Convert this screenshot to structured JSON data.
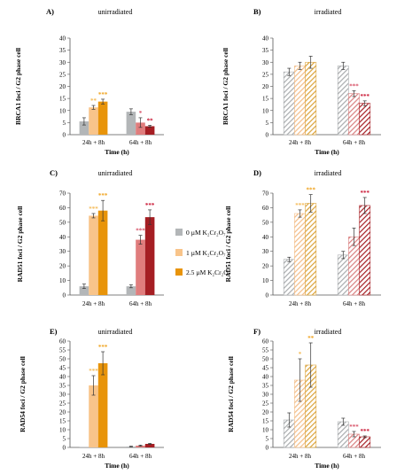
{
  "legend": {
    "entries": [
      "0 µM K₂Cr₂O₇",
      "1 µM K₂Cr₂O₇",
      "2.5 µM K₂Cr₂O₇"
    ],
    "colors": [
      "#b3b6b8",
      "#f8c48a",
      "#e8940a"
    ]
  },
  "colors": {
    "unirradiated": [
      "#b3b6b8",
      "#f8c48a",
      "#e8940a"
    ],
    "unirradiated_64h": [
      "#b3b6b8",
      "#e07d7d",
      "#a51e23"
    ],
    "irradiated_24h_stroke": [
      "#a9acae",
      "#f3bd88",
      "#dba33a"
    ],
    "irradiated_64h_stroke": [
      "#a9acae",
      "#d98080",
      "#a51e23"
    ],
    "orange_star": "#f0a31e",
    "red_star": "#c8102e",
    "axis": "#555555"
  },
  "chart_data": [
    {
      "panel": "A)",
      "title": "unirradiated",
      "type": "bar",
      "pattern": "solid",
      "ylabel": "BRCA1 foci / G2 phase cell",
      "xlabel": "Time (h)",
      "ylim": [
        0,
        40
      ],
      "yticks": [
        0,
        5,
        10,
        15,
        20,
        25,
        30,
        35,
        40
      ],
      "categories": [
        "24h + 8h",
        "64h + 8h"
      ],
      "series": [
        {
          "values": [
            5.5,
            9.5
          ],
          "errors": [
            1.5,
            1.2
          ]
        },
        {
          "values": [
            11.3,
            5.0
          ],
          "errors": [
            0.8,
            2.0
          ]
        },
        {
          "values": [
            13.7,
            3.5
          ],
          "errors": [
            1.0,
            0.4
          ]
        }
      ],
      "stars": [
        [
          "",
          ""
        ],
        [
          "**",
          "*"
        ],
        [
          "***",
          "**"
        ]
      ]
    },
    {
      "panel": "B)",
      "title": "irradiated",
      "type": "bar",
      "pattern": "hatched",
      "ylabel": "BRCA1 foci / G2 phase cell",
      "xlabel": "Time (h)",
      "ylim": [
        0,
        40
      ],
      "yticks": [
        0,
        5,
        10,
        15,
        20,
        25,
        30,
        35,
        40
      ],
      "categories": [
        "24h + 8h",
        "64h + 8h"
      ],
      "series": [
        {
          "values": [
            26.0,
            28.5
          ],
          "errors": [
            1.5,
            1.5
          ]
        },
        {
          "values": [
            28.5,
            17.0
          ],
          "errors": [
            1.5,
            1.2
          ]
        },
        {
          "values": [
            30.0,
            13.0
          ],
          "errors": [
            2.5,
            1.0
          ]
        }
      ],
      "stars": [
        [
          "",
          ""
        ],
        [
          "",
          "***"
        ],
        [
          "",
          "***"
        ]
      ]
    },
    {
      "panel": "C)",
      "title": "unirradiated",
      "type": "bar",
      "pattern": "solid",
      "ylabel": "RAD51 foci / G2 phase cell",
      "xlabel": "",
      "ylim": [
        0,
        70
      ],
      "yticks": [
        0,
        10,
        20,
        30,
        40,
        50,
        60,
        70
      ],
      "categories": [
        "24h + 8h",
        "64h + 8h"
      ],
      "series": [
        {
          "values": [
            6.0,
            6.0
          ],
          "errors": [
            1.5,
            1.0
          ]
        },
        {
          "values": [
            54.5,
            38.0
          ],
          "errors": [
            1.5,
            3.0
          ]
        },
        {
          "values": [
            58.0,
            53.5
          ],
          "errors": [
            7.0,
            5.0
          ]
        }
      ],
      "stars": [
        [
          "",
          ""
        ],
        [
          "***",
          "***"
        ],
        [
          "***",
          "***"
        ]
      ]
    },
    {
      "panel": "D)",
      "title": "irradiated",
      "type": "bar",
      "pattern": "hatched",
      "ylabel": "RAD51 foci / G2 phase cell",
      "xlabel": "",
      "ylim": [
        0,
        70
      ],
      "yticks": [
        0,
        10,
        20,
        30,
        40,
        50,
        60,
        70
      ],
      "categories": [
        "24h + 8h",
        "64h + 8h"
      ],
      "series": [
        {
          "values": [
            24.5,
            27.5
          ],
          "errors": [
            1.5,
            2.5
          ]
        },
        {
          "values": [
            56.0,
            40.0
          ],
          "errors": [
            2.5,
            6.0
          ]
        },
        {
          "values": [
            63.0,
            61.5
          ],
          "errors": [
            6.0,
            5.5
          ]
        }
      ],
      "stars": [
        [
          "",
          ""
        ],
        [
          "***",
          ""
        ],
        [
          "***",
          "***"
        ]
      ]
    },
    {
      "panel": "E)",
      "title": "unirradiated",
      "type": "bar",
      "pattern": "solid",
      "ylabel": "RAD54 foci / G2 phase cell",
      "xlabel": "Time (h)",
      "ylim": [
        0,
        60
      ],
      "yticks": [
        0,
        5,
        10,
        15,
        20,
        25,
        30,
        35,
        40,
        45,
        50,
        55,
        60
      ],
      "categories": [
        "24h + 8h",
        "64h + 8h"
      ],
      "series": [
        {
          "values": [
            0.3,
            0.5
          ],
          "errors": [
            0.0,
            0.2
          ]
        },
        {
          "values": [
            35.0,
            1.0
          ],
          "errors": [
            5.5,
            0.3
          ]
        },
        {
          "values": [
            47.5,
            2.0
          ],
          "errors": [
            6.5,
            0.3
          ]
        }
      ],
      "stars": [
        [
          "",
          ""
        ],
        [
          "***",
          ""
        ],
        [
          "***",
          ""
        ]
      ]
    },
    {
      "panel": "F)",
      "title": "irradiated",
      "type": "bar",
      "pattern": "hatched",
      "ylabel": "RAD54 foci / G2 phase cell",
      "xlabel": "Time (h)",
      "ylim": [
        0,
        60
      ],
      "yticks": [
        0,
        5,
        10,
        15,
        20,
        25,
        30,
        35,
        40,
        45,
        50,
        55,
        60
      ],
      "categories": [
        "24h + 8h",
        "64h + 8h"
      ],
      "series": [
        {
          "values": [
            15.5,
            14.5
          ],
          "errors": [
            4.0,
            2.0
          ]
        },
        {
          "values": [
            38.0,
            7.5
          ],
          "errors": [
            12.0,
            1.5
          ]
        },
        {
          "values": [
            46.5,
            6.0
          ],
          "errors": [
            12.5,
            0.5
          ]
        }
      ],
      "stars": [
        [
          "",
          ""
        ],
        [
          "*",
          "***"
        ],
        [
          "**",
          "***"
        ]
      ]
    }
  ]
}
